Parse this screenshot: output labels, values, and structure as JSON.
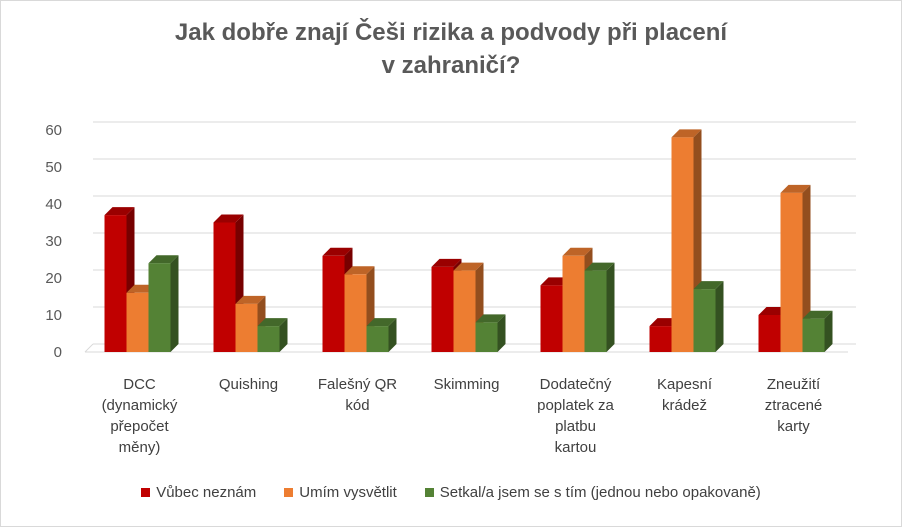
{
  "chart_data": {
    "type": "bar",
    "title_lines": [
      "Jak dobře znají Češi rizika a podvody při placení",
      "v zahraničí?"
    ],
    "categories": [
      [
        "DCC",
        "(dynamický",
        "přepočet",
        "měny)"
      ],
      [
        "Quishing"
      ],
      [
        "Falešný QR",
        "kód"
      ],
      [
        "Skimming"
      ],
      [
        "Dodatečný",
        "poplatek za",
        "platbu",
        "kartou"
      ],
      [
        "Kapesní",
        "krádež"
      ],
      [
        "Zneužití",
        "ztracené",
        "karty"
      ]
    ],
    "series": [
      {
        "name": "Vůbec neznám",
        "color": "#c00000",
        "values": [
          37,
          35,
          26,
          23,
          18,
          7,
          10
        ]
      },
      {
        "name": "Umím vysvětlit",
        "color": "#ed7d31",
        "values": [
          16,
          13,
          21,
          22,
          26,
          58,
          43
        ]
      },
      {
        "name": "Setkal/a jsem se s tím (jednou nebo opakovaně)",
        "color": "#548235",
        "values": [
          24,
          7,
          7,
          8,
          22,
          17,
          9
        ]
      }
    ],
    "ylim": [
      0,
      60
    ],
    "yticks": [
      "0",
      "10",
      "20",
      "30",
      "40",
      "50",
      "60"
    ],
    "grid": true,
    "legend_position": "bottom"
  }
}
